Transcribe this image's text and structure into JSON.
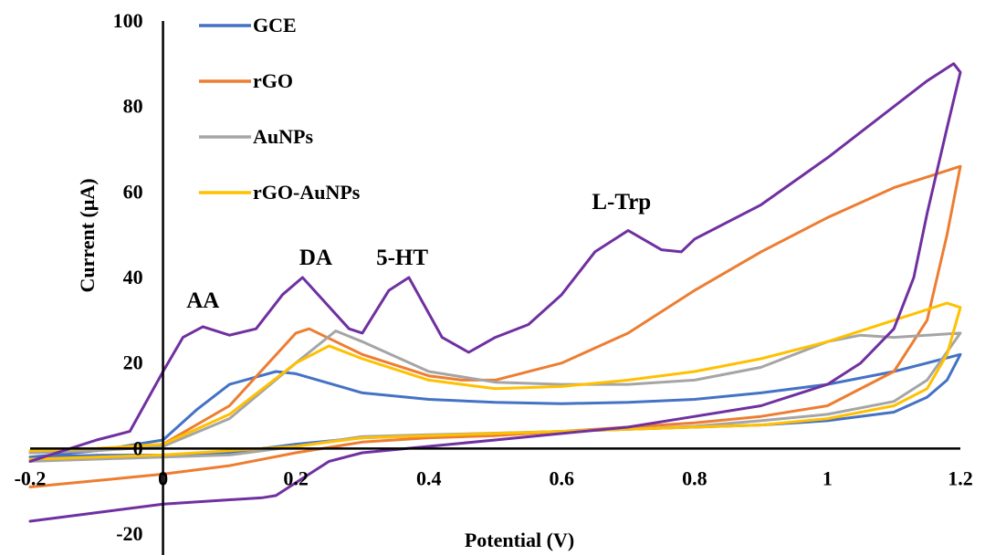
{
  "chart_data": {
    "type": "line",
    "title": "",
    "xlabel": "Potential (V)",
    "ylabel": "Current (μA)",
    "xlim": [
      -0.2,
      1.2
    ],
    "ylim": [
      -20,
      100
    ],
    "x_ticks": [
      -0.2,
      0,
      0.2,
      0.4,
      0.6,
      0.8,
      1,
      1.2
    ],
    "x_tick_labels": [
      "-0.2",
      "0",
      "0.2",
      "0.4",
      "0.6",
      "0.8",
      "1",
      "1.2"
    ],
    "y_ticks": [
      -20,
      0,
      20,
      40,
      60,
      80,
      100
    ],
    "y_tick_labels": [
      "-20",
      "0",
      "20",
      "40",
      "60",
      "80",
      "100"
    ],
    "grid": false,
    "legend_position": "top-left",
    "annotations": [
      {
        "text": "AA",
        "x": 0.06,
        "y": 33
      },
      {
        "text": "DA",
        "x": 0.23,
        "y": 43
      },
      {
        "text": "5-HT",
        "x": 0.36,
        "y": 43
      },
      {
        "text": "L-Trp",
        "x": 0.69,
        "y": 56
      }
    ],
    "series": [
      {
        "name": "GCE",
        "color": "#4472C4",
        "points": [
          [
            -0.2,
            -2
          ],
          [
            -0.1,
            -1.6
          ],
          [
            0,
            -1.5
          ],
          [
            0.1,
            -1
          ],
          [
            0.2,
            1
          ],
          [
            0.3,
            2.5
          ],
          [
            0.4,
            3
          ],
          [
            0.5,
            3.5
          ],
          [
            0.6,
            4
          ],
          [
            0.7,
            4.5
          ],
          [
            0.8,
            5
          ],
          [
            0.9,
            5.5
          ],
          [
            1,
            6.5
          ],
          [
            1.1,
            8.5
          ],
          [
            1.15,
            12
          ],
          [
            1.18,
            16
          ],
          [
            1.2,
            22
          ],
          [
            1.15,
            20
          ],
          [
            1.1,
            18
          ],
          [
            1,
            15
          ],
          [
            0.9,
            13
          ],
          [
            0.8,
            11.5
          ],
          [
            0.7,
            10.8
          ],
          [
            0.6,
            10.5
          ],
          [
            0.5,
            10.8
          ],
          [
            0.4,
            11.5
          ],
          [
            0.3,
            13
          ],
          [
            0.2,
            17.5
          ],
          [
            0.17,
            18
          ],
          [
            0.1,
            15
          ],
          [
            0.05,
            9
          ],
          [
            0,
            2
          ],
          [
            -0.1,
            -0.5
          ],
          [
            -0.2,
            -2
          ]
        ]
      },
      {
        "name": "rGO",
        "color": "#ED7D31",
        "points": [
          [
            -0.2,
            -9
          ],
          [
            -0.1,
            -7.5
          ],
          [
            0,
            -6
          ],
          [
            0.1,
            -4
          ],
          [
            0.2,
            -1
          ],
          [
            0.3,
            1.5
          ],
          [
            0.4,
            2.5
          ],
          [
            0.5,
            3
          ],
          [
            0.6,
            4
          ],
          [
            0.7,
            5
          ],
          [
            0.8,
            6
          ],
          [
            0.9,
            7.5
          ],
          [
            1,
            10
          ],
          [
            1.1,
            18
          ],
          [
            1.15,
            30
          ],
          [
            1.18,
            50
          ],
          [
            1.2,
            66
          ],
          [
            1.1,
            61
          ],
          [
            1,
            54
          ],
          [
            0.9,
            46
          ],
          [
            0.8,
            37
          ],
          [
            0.7,
            27
          ],
          [
            0.6,
            20
          ],
          [
            0.5,
            16
          ],
          [
            0.45,
            16
          ],
          [
            0.4,
            17
          ],
          [
            0.3,
            22
          ],
          [
            0.22,
            28
          ],
          [
            0.2,
            27
          ],
          [
            0.1,
            10
          ],
          [
            0,
            1
          ],
          [
            -0.1,
            -0.5
          ],
          [
            -0.2,
            -1
          ]
        ]
      },
      {
        "name": "AuNPs",
        "color": "#A5A5A5",
        "points": [
          [
            -0.2,
            -3
          ],
          [
            -0.1,
            -2.5
          ],
          [
            0,
            -2
          ],
          [
            0.1,
            -1.5
          ],
          [
            0.2,
            0.5
          ],
          [
            0.3,
            2.8
          ],
          [
            0.4,
            3.2
          ],
          [
            0.5,
            3.6
          ],
          [
            0.6,
            4
          ],
          [
            0.7,
            4.5
          ],
          [
            0.8,
            5.2
          ],
          [
            0.9,
            6.5
          ],
          [
            1,
            8
          ],
          [
            1.1,
            11
          ],
          [
            1.15,
            16
          ],
          [
            1.2,
            27
          ],
          [
            1.1,
            26
          ],
          [
            1.05,
            26.5
          ],
          [
            1,
            25
          ],
          [
            0.9,
            19
          ],
          [
            0.8,
            16
          ],
          [
            0.7,
            15
          ],
          [
            0.6,
            15
          ],
          [
            0.5,
            15.5
          ],
          [
            0.4,
            18
          ],
          [
            0.3,
            25
          ],
          [
            0.26,
            27.5
          ],
          [
            0.2,
            20
          ],
          [
            0.1,
            7
          ],
          [
            0,
            0.5
          ],
          [
            -0.1,
            -0.5
          ],
          [
            -0.2,
            -1
          ]
        ]
      },
      {
        "name": "rGO-AuNPs",
        "color": "#FFC000",
        "points": [
          [
            -0.2,
            -2.5
          ],
          [
            -0.1,
            -2
          ],
          [
            0,
            -1.5
          ],
          [
            0.1,
            -0.5
          ],
          [
            0.2,
            0.5
          ],
          [
            0.3,
            2.5
          ],
          [
            0.4,
            3
          ],
          [
            0.5,
            3.5
          ],
          [
            0.6,
            4
          ],
          [
            0.7,
            4.5
          ],
          [
            0.8,
            5
          ],
          [
            0.9,
            5.5
          ],
          [
            1,
            7
          ],
          [
            1.1,
            10
          ],
          [
            1.15,
            14
          ],
          [
            1.18,
            22
          ],
          [
            1.2,
            33
          ],
          [
            1.18,
            34
          ],
          [
            1.1,
            30
          ],
          [
            1,
            25
          ],
          [
            0.9,
            21
          ],
          [
            0.8,
            18
          ],
          [
            0.7,
            16
          ],
          [
            0.6,
            14.5
          ],
          [
            0.5,
            14
          ],
          [
            0.4,
            16
          ],
          [
            0.3,
            21
          ],
          [
            0.25,
            24
          ],
          [
            0.2,
            20
          ],
          [
            0.1,
            8
          ],
          [
            0,
            1
          ],
          [
            -0.1,
            0
          ],
          [
            -0.2,
            -0.5
          ]
        ]
      },
      {
        "name": "",
        "color": "#7030A0",
        "points": [
          [
            -0.2,
            -17
          ],
          [
            -0.1,
            -15
          ],
          [
            0,
            -13
          ],
          [
            0.1,
            -12
          ],
          [
            0.15,
            -11.5
          ],
          [
            0.17,
            -11
          ],
          [
            0.2,
            -8
          ],
          [
            0.25,
            -3
          ],
          [
            0.3,
            -1
          ],
          [
            0.4,
            0.5
          ],
          [
            0.5,
            2
          ],
          [
            0.6,
            3.5
          ],
          [
            0.7,
            5
          ],
          [
            0.8,
            7.5
          ],
          [
            0.9,
            10
          ],
          [
            1,
            15
          ],
          [
            1.05,
            20
          ],
          [
            1.1,
            28
          ],
          [
            1.13,
            40
          ],
          [
            1.15,
            55
          ],
          [
            1.18,
            75
          ],
          [
            1.2,
            88
          ],
          [
            1.19,
            90
          ],
          [
            1.15,
            86
          ],
          [
            1.1,
            80
          ],
          [
            1,
            68
          ],
          [
            0.9,
            57
          ],
          [
            0.8,
            49
          ],
          [
            0.78,
            46
          ],
          [
            0.75,
            46.5
          ],
          [
            0.7,
            51
          ],
          [
            0.65,
            46
          ],
          [
            0.6,
            36
          ],
          [
            0.55,
            29
          ],
          [
            0.5,
            26
          ],
          [
            0.46,
            22.5
          ],
          [
            0.42,
            26
          ],
          [
            0.37,
            40
          ],
          [
            0.34,
            37
          ],
          [
            0.3,
            27
          ],
          [
            0.28,
            28
          ],
          [
            0.21,
            40
          ],
          [
            0.18,
            36
          ],
          [
            0.14,
            28
          ],
          [
            0.1,
            26.5
          ],
          [
            0.06,
            28.5
          ],
          [
            0.03,
            26
          ],
          [
            0,
            18
          ],
          [
            -0.05,
            4
          ],
          [
            -0.1,
            2
          ],
          [
            -0.2,
            -3
          ]
        ]
      }
    ]
  }
}
